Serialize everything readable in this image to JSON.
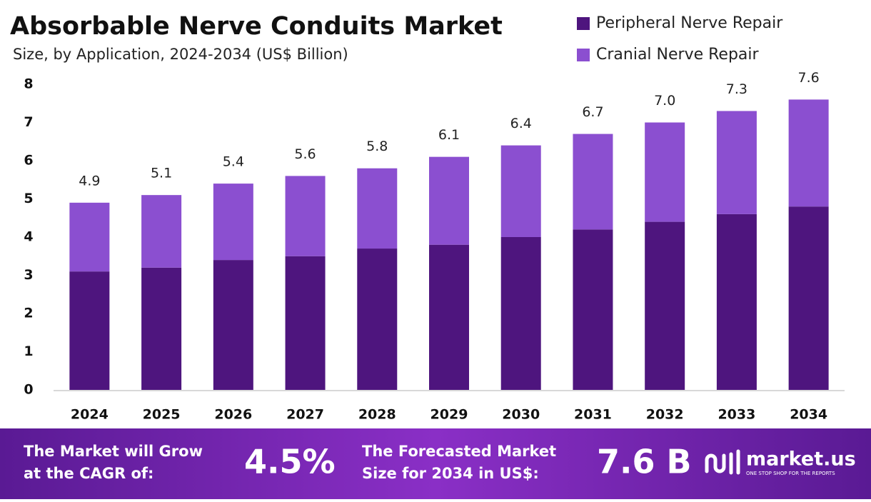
{
  "chart_data": {
    "type": "stacked-bar",
    "title": "Absorbable Nerve Conduits Market",
    "subtitle": "Size, by Application, 2024-2034 (US$ Billion)",
    "categories": [
      "2024",
      "2025",
      "2026",
      "2027",
      "2028",
      "2029",
      "2030",
      "2031",
      "2032",
      "2033",
      "2034"
    ],
    "series": [
      {
        "name": "Peripheral Nerve Repair",
        "color": "#4e157e",
        "values": [
          3.1,
          3.2,
          3.4,
          3.5,
          3.7,
          3.8,
          4.0,
          4.2,
          4.4,
          4.6,
          4.8
        ]
      },
      {
        "name": "Cranial Nerve Repair",
        "color": "#8b4fd0",
        "values": [
          1.8,
          1.9,
          2.0,
          2.1,
          2.1,
          2.3,
          2.4,
          2.5,
          2.6,
          2.7,
          2.8
        ]
      }
    ],
    "totals": [
      4.9,
      5.1,
      5.4,
      5.6,
      5.8,
      6.1,
      6.4,
      6.7,
      7.0,
      7.3,
      7.6
    ],
    "totals_labels": [
      "4.9",
      "5.1",
      "5.4",
      "5.6",
      "5.8",
      "6.1",
      "6.4",
      "6.7",
      "7.0",
      "7.3",
      "7.6"
    ],
    "ylim": [
      0,
      8
    ],
    "yticks": [
      0,
      1,
      2,
      3,
      4,
      5,
      6,
      7,
      8
    ],
    "grid": false,
    "legend": "top-right"
  },
  "footer": {
    "cagr_text": [
      "The Market will Grow",
      "at the CAGR of:"
    ],
    "cagr_value": "4.5%",
    "forecast_text": [
      "The Forecasted Market",
      "Size for 2034 in US$:"
    ],
    "forecast_value": "7.6 B",
    "brand": "market.us",
    "tagline": "ONE STOP SHOP FOR THE REPORTS"
  }
}
